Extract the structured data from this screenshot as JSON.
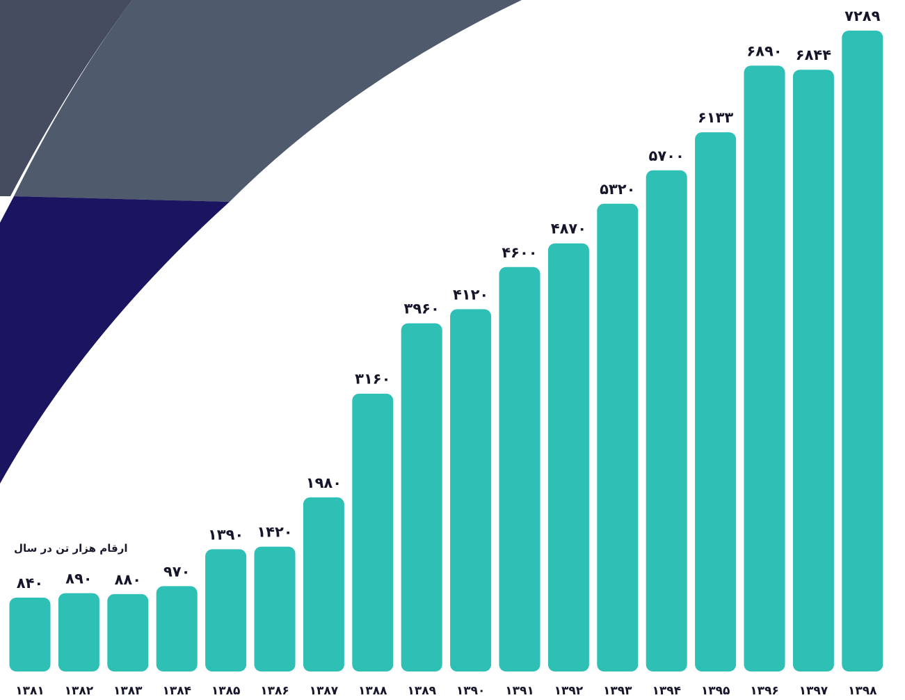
{
  "unit_note": "ارقام هزار تن در سال",
  "colors": {
    "bar": "#2ebfb5",
    "band_dark": "#454c5f",
    "band_slate": "#4f5a6d",
    "band_navy": "#1b1561",
    "text": "#16162b"
  },
  "chart_data": {
    "type": "bar",
    "title": "",
    "xlabel": "",
    "ylabel": "",
    "ylim": [
      0,
      7289
    ],
    "grid": false,
    "categories": [
      "۱۳۸۱",
      "۱۳۸۲",
      "۱۳۸۳",
      "۱۳۸۴",
      "۱۳۸۵",
      "۱۳۸۶",
      "۱۳۸۷",
      "۱۳۸۸",
      "۱۳۸۹",
      "۱۳۹۰",
      "۱۳۹۱",
      "۱۳۹۲",
      "۱۳۹۳",
      "۱۳۹۴",
      "۱۳۹۵",
      "۱۳۹۶",
      "۱۳۹۷",
      "۱۳۹۸"
    ],
    "values": [
      840,
      890,
      880,
      970,
      1390,
      1420,
      1980,
      3160,
      3960,
      4120,
      4600,
      4870,
      5320,
      5700,
      6133,
      6890,
      6844,
      7289
    ],
    "value_labels": [
      "۸۴۰",
      "۸۹۰",
      "۸۸۰",
      "۹۷۰",
      "۱۳۹۰",
      "۱۴۲۰",
      "۱۹۸۰",
      "۳۱۶۰",
      "۳۹۶۰",
      "۴۱۲۰",
      "۴۶۰۰",
      "۴۸۷۰",
      "۵۳۲۰",
      "۵۷۰۰",
      "۶۱۳۳",
      "۶۸۹۰",
      "۶۸۴۴",
      "۷۲۸۹"
    ]
  }
}
